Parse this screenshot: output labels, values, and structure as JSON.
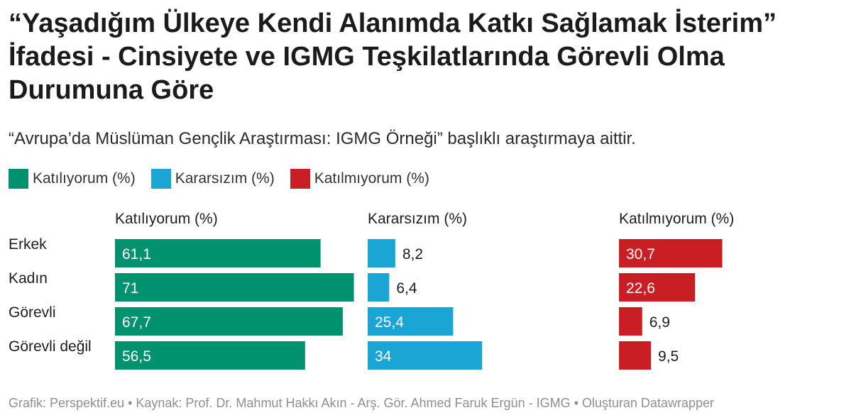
{
  "title": "“Yaşadığım Ülkeye Kendi Alanımda Katkı Sağlamak İsterim” İfadesi - Cinsiyete ve IGMG Teşkilatlarında Görevli Olma Durumuna Göre",
  "subtitle": "“Avrupa’da Müslüman Gençlik Araştırması: IGMG Örneği” başlıklı araştırmaya aittir.",
  "legend": [
    {
      "label": "Katılıyorum (%)",
      "color": "#00916e"
    },
    {
      "label": "Kararsızım (%)",
      "color": "#1ba5d5"
    },
    {
      "label": "Katılmıyorum (%)",
      "color": "#c91e23"
    }
  ],
  "footer": "Grafik: Perspektif.eu • Kaynak: Prof. Dr. Mahmut Hakkı Akın - Arş. Gör. Ahmed Faruk Ergün - IGMG • Oluşturan Datawrapper",
  "chart_data": {
    "type": "bar",
    "orientation": "horizontal",
    "layout": "small-multiples",
    "categories": [
      "Erkek",
      "Kadın",
      "Görevli",
      "Görevli değil"
    ],
    "series": [
      {
        "name": "Katılıyorum (%)",
        "color": "#00916e",
        "values": [
          61.1,
          71,
          67.7,
          56.5
        ],
        "labels": [
          "61,1",
          "71",
          "67,7",
          "56,5"
        ]
      },
      {
        "name": "Kararsızım (%)",
        "color": "#1ba5d5",
        "values": [
          8.2,
          6.4,
          25.4,
          34
        ],
        "labels": [
          "8,2",
          "6,4",
          "25,4",
          "34"
        ]
      },
      {
        "name": "Katılmıyorum (%)",
        "color": "#c91e23",
        "values": [
          30.7,
          22.6,
          6.9,
          9.5
        ],
        "labels": [
          "30,7",
          "22,6",
          "6,9",
          "9,5"
        ]
      }
    ],
    "grid": false,
    "legend_position": "top-left"
  }
}
